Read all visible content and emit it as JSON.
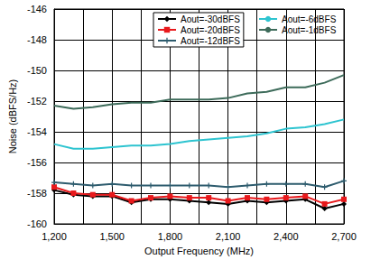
{
  "chart_data": {
    "type": "line",
    "x_label": "Output Frequency (MHz)",
    "y_label": "Noise (dBFS/Hz)",
    "x": [
      1200,
      1300,
      1400,
      1500,
      1600,
      1700,
      1800,
      1900,
      2000,
      2100,
      2200,
      2300,
      2400,
      2500,
      2600,
      2700
    ],
    "series": [
      {
        "name": "Aout=-30dBFS",
        "color": "#000000",
        "marker": "diamond",
        "values": [
          -157.8,
          -158.1,
          -158.2,
          -158.2,
          -158.6,
          -158.4,
          -158.4,
          -158.5,
          -158.6,
          -158.7,
          -158.5,
          -158.6,
          -158.5,
          -158.4,
          -159.0,
          -158.7
        ]
      },
      {
        "name": "Aout=-20dBFS",
        "color": "#e8191c",
        "marker": "square",
        "values": [
          -157.6,
          -158.0,
          -158.1,
          -158.1,
          -158.5,
          -158.3,
          -158.2,
          -158.3,
          -158.3,
          -158.5,
          -158.3,
          -158.4,
          -158.3,
          -158.2,
          -158.7,
          -158.4
        ]
      },
      {
        "name": "Aout=-12dBFS",
        "color": "#2e5c6e",
        "marker": "cross",
        "values": [
          -157.3,
          -157.4,
          -157.5,
          -157.4,
          -157.5,
          -157.5,
          -157.5,
          -157.5,
          -157.5,
          -157.6,
          -157.5,
          -157.4,
          -157.4,
          -157.4,
          -157.6,
          -157.2
        ]
      },
      {
        "name": "Aout=-6dBFS",
        "color": "#2ec4d0",
        "marker": "none",
        "values": [
          -154.8,
          -155.1,
          -155.1,
          -155.0,
          -154.9,
          -154.9,
          -154.8,
          -154.6,
          -154.5,
          -154.4,
          -154.3,
          -154.1,
          -153.8,
          -153.7,
          -153.5,
          -153.2
        ]
      },
      {
        "name": "Aout=-1dBFS",
        "color": "#3d6b5a",
        "marker": "none",
        "values": [
          -152.3,
          -152.5,
          -152.4,
          -152.2,
          -152.1,
          -152.1,
          -151.9,
          -151.9,
          -151.9,
          -151.8,
          -151.5,
          -151.4,
          -151.1,
          -151.1,
          -150.8,
          -150.3
        ]
      }
    ],
    "xlim": [
      1200,
      2700
    ],
    "xticks": [
      1200,
      1500,
      1800,
      2100,
      2400,
      2700
    ],
    "ylim": [
      -160,
      -146
    ],
    "yticks": [
      -160,
      -158,
      -156,
      -154,
      -152,
      -150,
      -148,
      -146
    ],
    "grid": true,
    "legend": "top-right"
  }
}
